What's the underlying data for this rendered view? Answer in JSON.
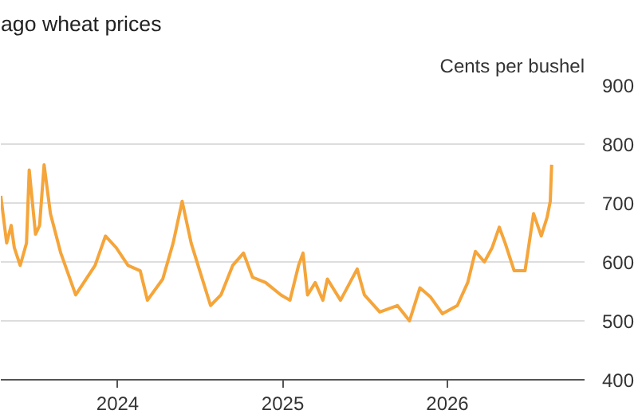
{
  "chart_data": {
    "type": "line",
    "title": "ago wheat prices",
    "ylabel": "Cents per bushel",
    "x": [
      "2023-04-17",
      "2023-04-30",
      "2023-05-10",
      "2023-05-17",
      "2023-05-30",
      "2023-06-13",
      "2023-06-19",
      "2023-07-03",
      "2023-07-12",
      "2023-07-22",
      "2023-08-05",
      "2023-08-28",
      "2023-09-30",
      "2023-11-12",
      "2023-12-05",
      "2023-12-29",
      "2024-01-24",
      "2024-02-20",
      "2024-03-07",
      "2024-04-10",
      "2024-05-03",
      "2024-05-23",
      "2024-06-12",
      "2024-07-01",
      "2024-07-25",
      "2024-08-17",
      "2024-09-12",
      "2024-10-06",
      "2024-10-26",
      "2024-11-24",
      "2024-12-28",
      "2025-01-17",
      "2025-02-05",
      "2025-02-15",
      "2025-02-25",
      "2025-03-14",
      "2025-03-31",
      "2025-04-10",
      "2025-05-09",
      "2025-06-15",
      "2025-07-01",
      "2025-08-04",
      "2025-09-12",
      "2025-10-09",
      "2025-11-01",
      "2025-11-24",
      "2025-12-21",
      "2026-01-23",
      "2026-02-15",
      "2026-03-04",
      "2026-03-24",
      "2026-04-10",
      "2026-04-26",
      "2026-05-09",
      "2026-05-29",
      "2026-06-22",
      "2026-07-11",
      "2026-07-28",
      "2026-08-10",
      "2026-08-17",
      "2026-08-20"
    ],
    "series": [
      {
        "color": "#f5a53a",
        "values": [
          712,
          632,
          662,
          624,
          594,
          632,
          756,
          647,
          662,
          765,
          682,
          615,
          544,
          594,
          644,
          624,
          594,
          585,
          535,
          571,
          632,
          703,
          632,
          585,
          526,
          544,
          594,
          615,
          574,
          565,
          544,
          535,
          594,
          615,
          544,
          565,
          535,
          571,
          535,
          588,
          544,
          515,
          526,
          500,
          556,
          541,
          512,
          526,
          565,
          618,
          600,
          624,
          659,
          632,
          585,
          585,
          682,
          644,
          676,
          703,
          765
        ]
      }
    ],
    "xlim": [
      "2023-04-17",
      "2026-11-01"
    ],
    "xticks": [
      "2024",
      "2025",
      "2026"
    ],
    "ylim": [
      400,
      900
    ],
    "yticks": [
      400,
      500,
      600,
      700,
      800,
      900
    ],
    "grid": "y",
    "marker": "none",
    "line_style": "solid"
  }
}
